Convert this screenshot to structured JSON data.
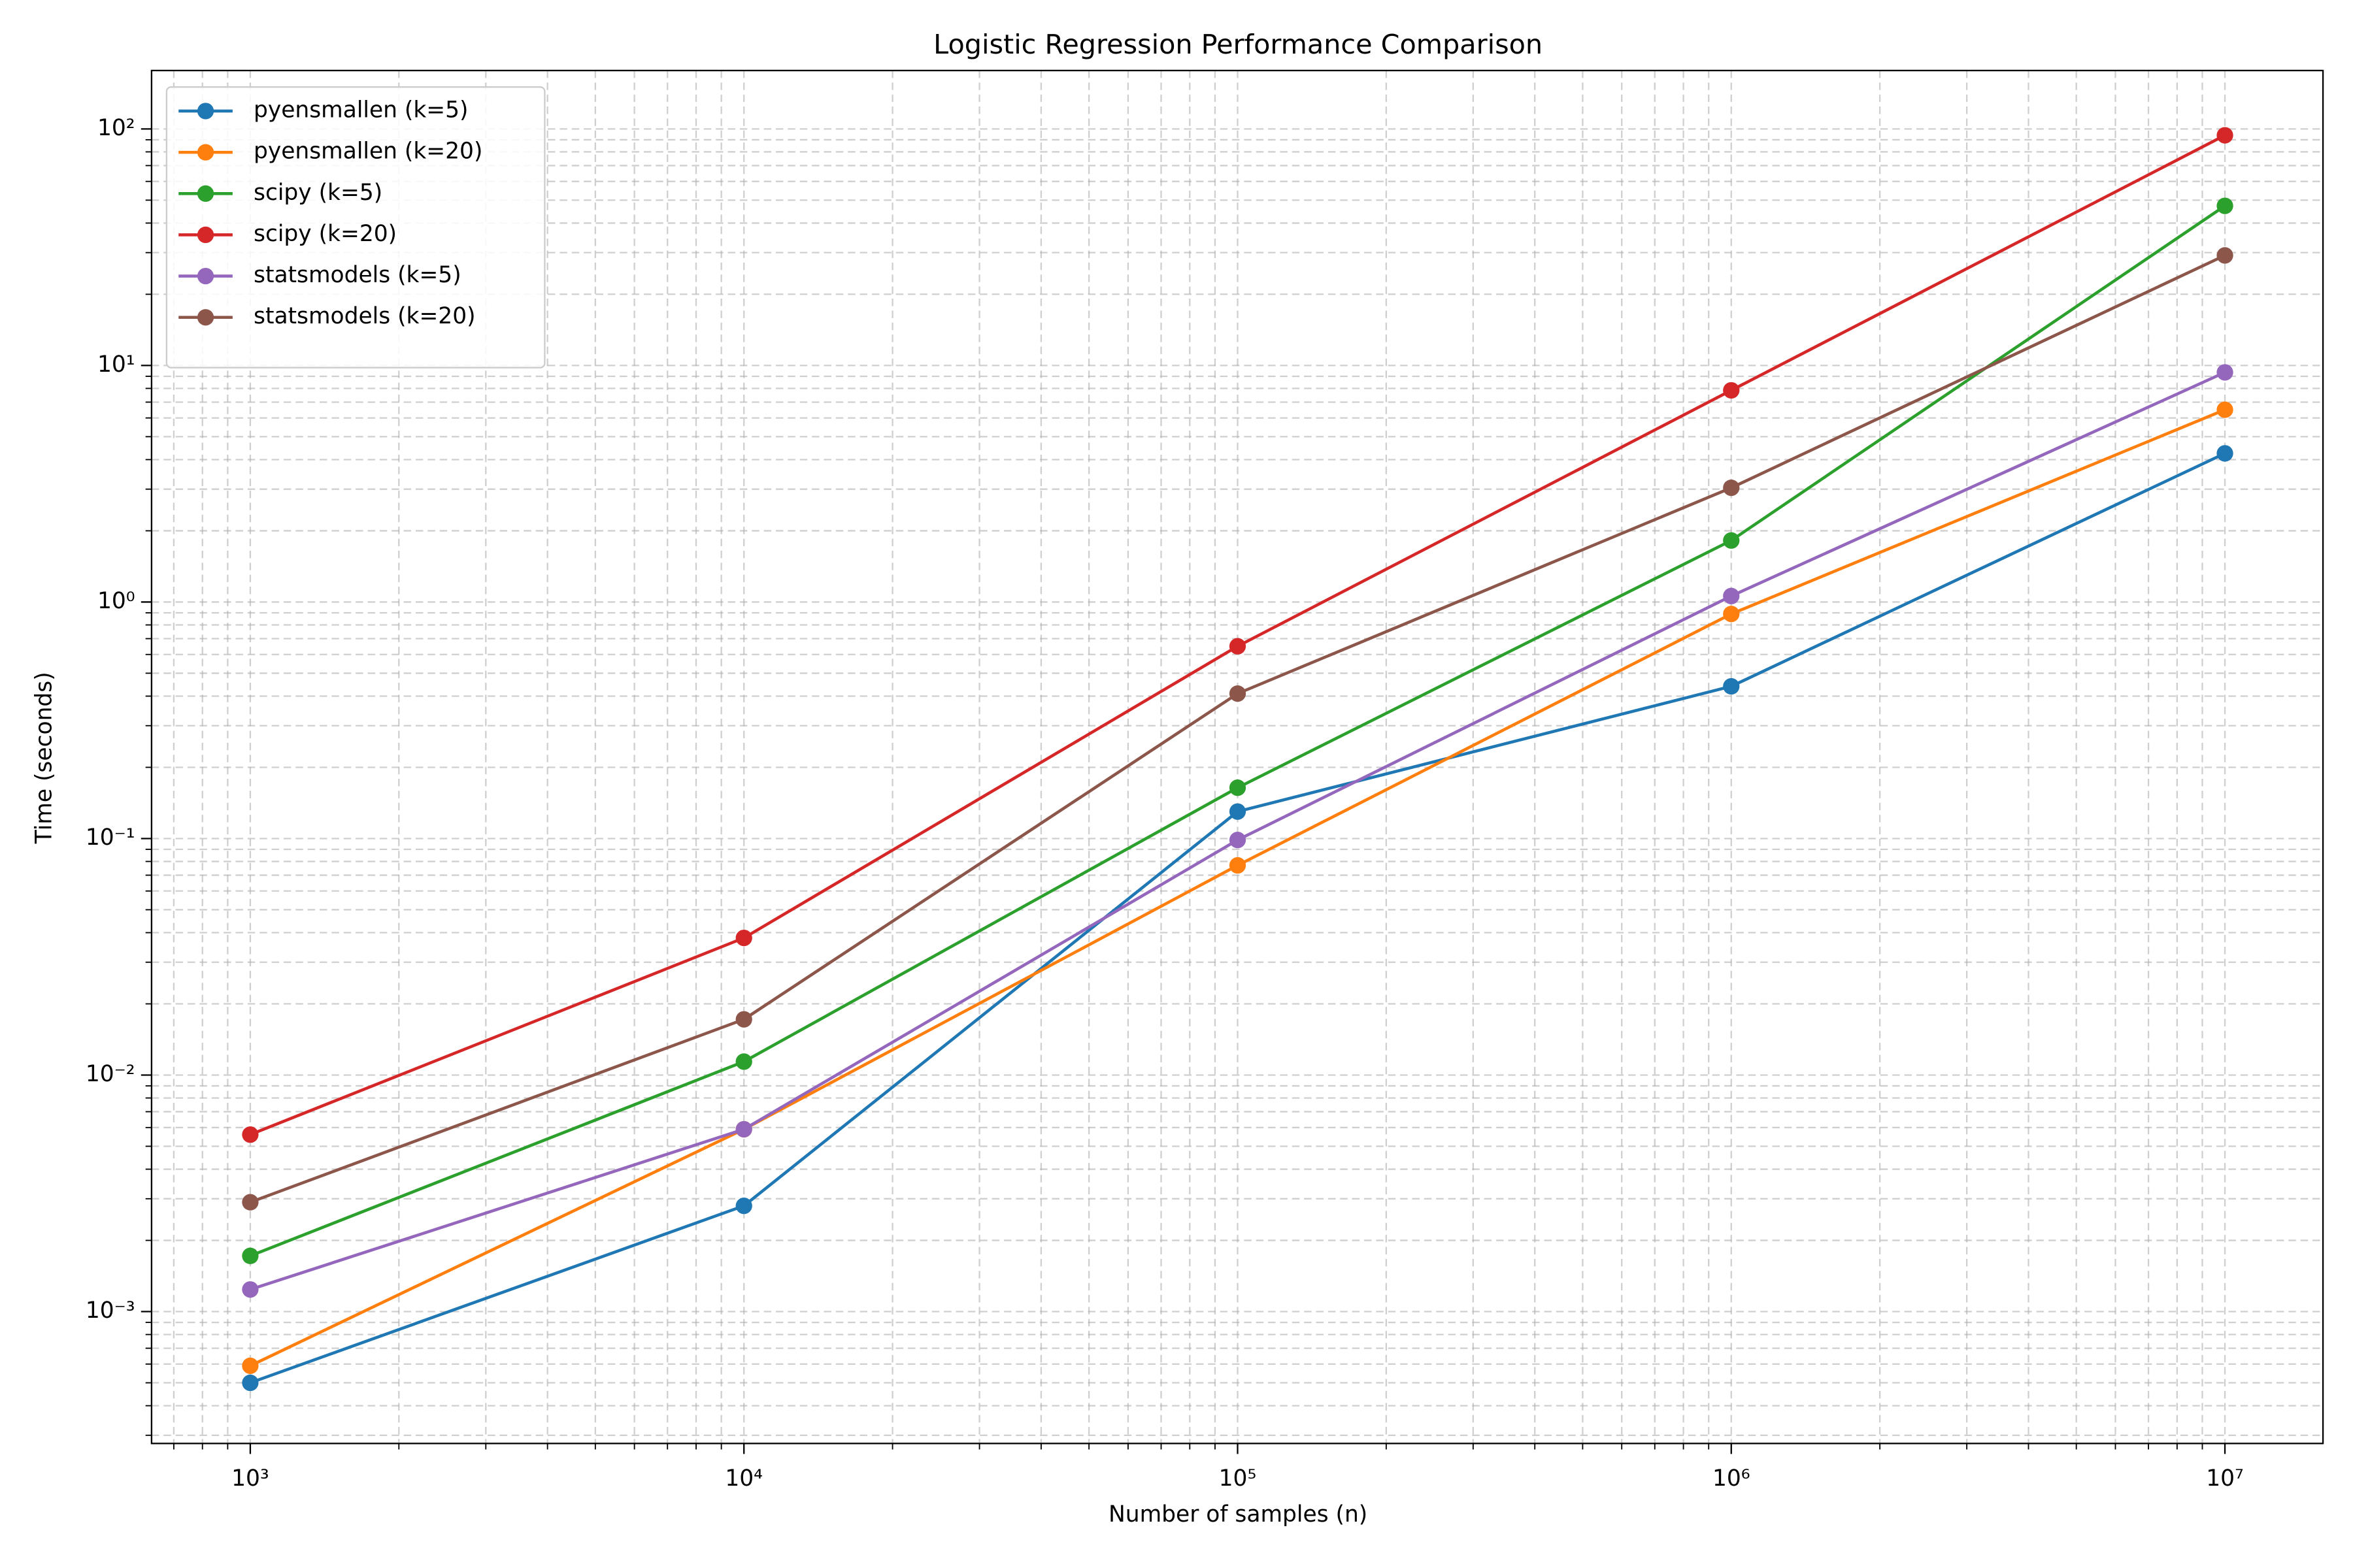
{
  "chart_data": {
    "type": "line",
    "title": "Logistic Regression Performance Comparison",
    "x_label": "Number of samples (n)",
    "y_label": "Time (seconds)",
    "x": [
      1000,
      10000,
      100000,
      1000000,
      10000000
    ],
    "series": [
      {
        "name": "pyensmallen (k=5)",
        "color": "#1f77b4",
        "values": [
          0.0005,
          0.0028,
          0.13,
          0.44,
          4.25
        ]
      },
      {
        "name": "pyensmallen (k=20)",
        "color": "#ff7f0e",
        "values": [
          0.00059,
          0.0059,
          0.077,
          0.89,
          6.5
        ]
      },
      {
        "name": "scipy (k=5)",
        "color": "#2ca02c",
        "values": [
          0.00172,
          0.0114,
          0.164,
          1.82,
          47.3
        ]
      },
      {
        "name": "scipy (k=20)",
        "color": "#d62728",
        "values": [
          0.0056,
          0.038,
          0.65,
          7.85,
          94
        ]
      },
      {
        "name": "statsmodels (k=5)",
        "color": "#9467bd",
        "values": [
          0.00124,
          0.0059,
          0.0986,
          1.06,
          9.35
        ]
      },
      {
        "name": "statsmodels (k=20)",
        "color": "#8c564b",
        "values": [
          0.0029,
          0.0172,
          0.41,
          3.04,
          29.2
        ]
      }
    ],
    "xscale": "log",
    "yscale": "log",
    "xlim": [
      631,
      15800000
    ],
    "ylim": [
      0.000277,
      176.6
    ],
    "xticks": [
      {
        "value": 1000,
        "label": "10³"
      },
      {
        "value": 10000,
        "label": "10⁴"
      },
      {
        "value": 100000,
        "label": "10⁵"
      },
      {
        "value": 1000000,
        "label": "10⁶"
      },
      {
        "value": 10000000,
        "label": "10⁷"
      }
    ],
    "yticks": [
      {
        "value": 0.001,
        "label": "10⁻³"
      },
      {
        "value": 0.01,
        "label": "10⁻²"
      },
      {
        "value": 0.1,
        "label": "10⁻¹"
      },
      {
        "value": 1,
        "label": "10⁰"
      },
      {
        "value": 10,
        "label": "10¹"
      },
      {
        "value": 100,
        "label": "10²"
      }
    ],
    "grid": true,
    "minor_grid": true,
    "legend": "upper left"
  }
}
